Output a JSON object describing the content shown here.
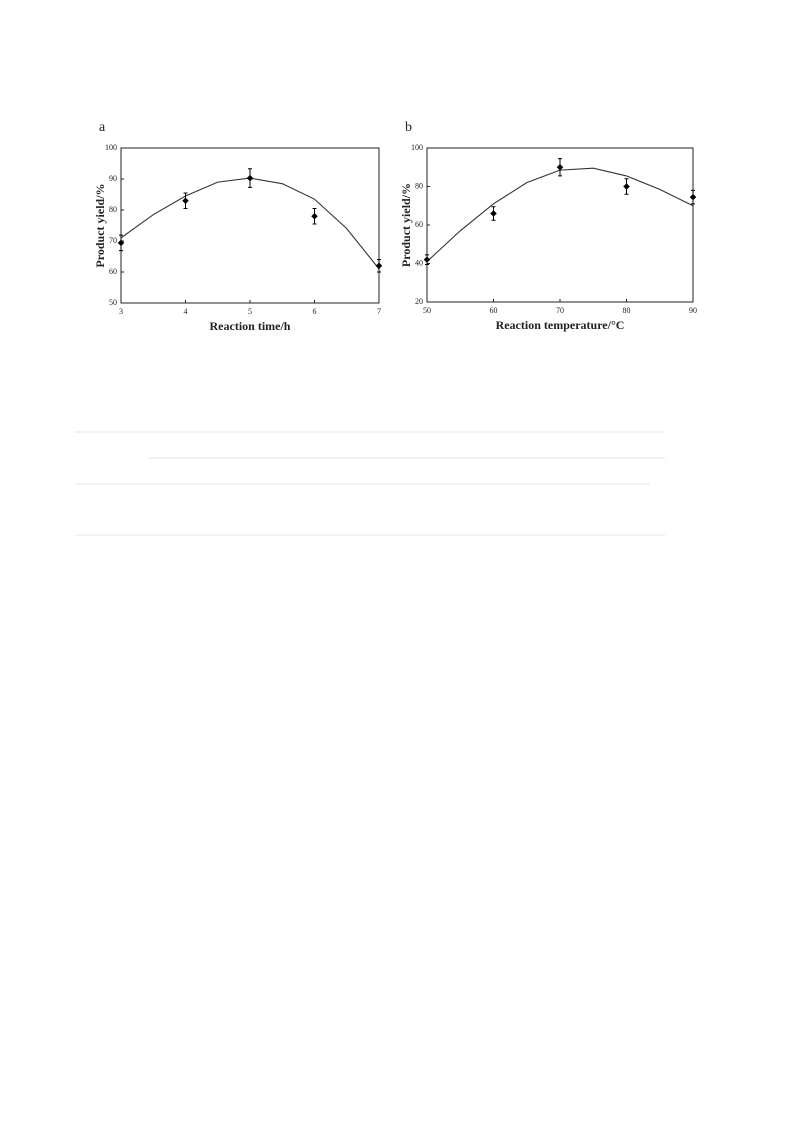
{
  "chart_data": [
    {
      "type": "scatter",
      "panel": "a",
      "xlabel": "Reaction time/h",
      "ylabel": "Product yield/%",
      "x": [
        3,
        4,
        5,
        6,
        7
      ],
      "values": [
        69.4,
        83,
        90.3,
        78,
        62
      ],
      "errors": [
        2.5,
        2.5,
        3,
        2.5,
        2
      ],
      "color": "#000000",
      "fit": {
        "x": [
          3,
          3.5,
          4,
          4.5,
          5,
          5.5,
          6,
          6.5,
          7
        ],
        "values": [
          71,
          78.5,
          84.5,
          89,
          90.3,
          88.5,
          83.5,
          74,
          61
        ]
      },
      "xlim": [
        3,
        7
      ],
      "xticks": [
        3,
        4,
        5,
        6,
        7
      ],
      "ylim": [
        50,
        100
      ],
      "yticks": [
        50,
        60,
        70,
        80,
        90,
        100
      ]
    },
    {
      "type": "scatter",
      "panel": "b",
      "xlabel": "Reaction temperature/°C",
      "ylabel": "Product yield/%",
      "x": [
        50,
        60,
        70,
        80,
        90
      ],
      "values": [
        42,
        66,
        90,
        80,
        74.5
      ],
      "errors": [
        2.5,
        3.5,
        4.5,
        4,
        3.5
      ],
      "color": "#000000",
      "fit": {
        "x": [
          50,
          55,
          60,
          65,
          70,
          75,
          80,
          85,
          90
        ],
        "values": [
          41,
          57,
          71,
          82,
          88.5,
          89.5,
          85.5,
          78.5,
          70
        ]
      },
      "xlim": [
        50,
        90
      ],
      "xticks": [
        50,
        60,
        70,
        80,
        90
      ],
      "ylim": [
        20,
        100
      ],
      "yticks": [
        20,
        40,
        60,
        80,
        100
      ]
    }
  ]
}
